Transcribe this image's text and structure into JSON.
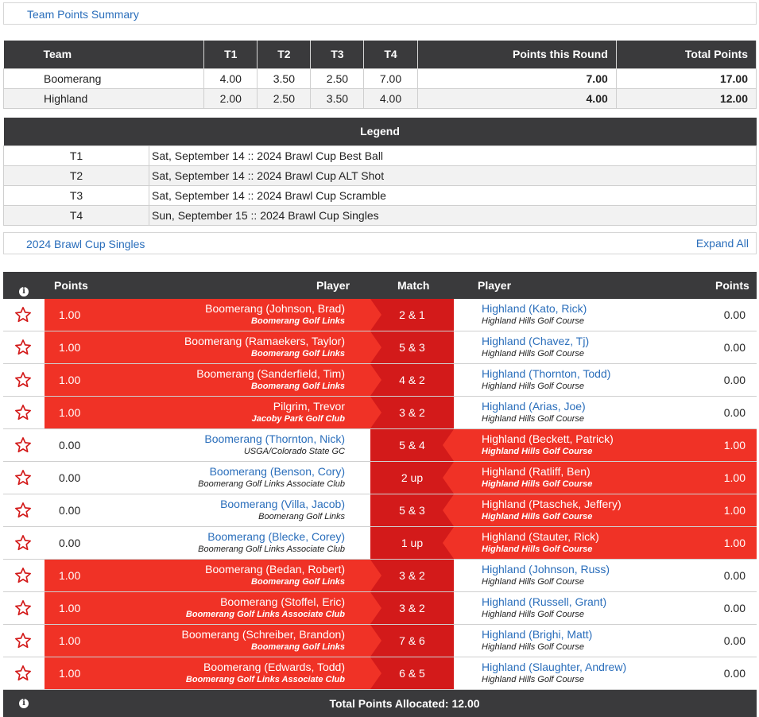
{
  "summary": {
    "link": "Team Points Summary"
  },
  "team_table": {
    "headers": [
      "Team",
      "T1",
      "T2",
      "T3",
      "T4",
      "Points this Round",
      "Total Points"
    ],
    "rows": [
      {
        "team": "Boomerang",
        "t1": "4.00",
        "t2": "3.50",
        "t3": "2.50",
        "t4": "7.00",
        "round": "7.00",
        "total": "17.00"
      },
      {
        "team": "Highland",
        "t1": "2.00",
        "t2": "2.50",
        "t3": "3.50",
        "t4": "4.00",
        "round": "4.00",
        "total": "12.00"
      }
    ]
  },
  "legend": {
    "title": "Legend",
    "rows": [
      {
        "key": "T1",
        "value": "Sat, September 14 :: 2024 Brawl Cup Best Ball"
      },
      {
        "key": "T2",
        "value": "Sat, September 14 :: 2024 Brawl Cup ALT Shot"
      },
      {
        "key": "T3",
        "value": "Sat, September 14 :: 2024 Brawl Cup Scramble"
      },
      {
        "key": "T4",
        "value": "Sun, September 15 :: 2024 Brawl Cup Singles"
      }
    ]
  },
  "round": {
    "title": "2024 Brawl Cup Singles",
    "expand": "Expand All"
  },
  "match_header": {
    "info_icon": "info-icon",
    "points_left": "Points",
    "player_left": "Player",
    "match": "Match",
    "player_right": "Player",
    "points_right": "Points"
  },
  "matches": [
    {
      "lpts": "1.00",
      "lname": "Boomerang (Johnson, Brad)",
      "lclub": "Boomerang Golf Links",
      "score": "2 & 1",
      "rname": "Highland (Kato, Rick)",
      "rclub": "Highland Hills Golf Course",
      "rpts": "0.00",
      "winner": "left"
    },
    {
      "lpts": "1.00",
      "lname": "Boomerang (Ramaekers, Taylor)",
      "lclub": "Boomerang Golf Links",
      "score": "5 & 3",
      "rname": "Highland (Chavez, Tj)",
      "rclub": "Highland Hills Golf Course",
      "rpts": "0.00",
      "winner": "left"
    },
    {
      "lpts": "1.00",
      "lname": "Boomerang (Sanderfield, Tim)",
      "lclub": "Boomerang Golf Links",
      "score": "4 & 2",
      "rname": "Highland (Thornton, Todd)",
      "rclub": "Highland Hills Golf Course",
      "rpts": "0.00",
      "winner": "left"
    },
    {
      "lpts": "1.00",
      "lname": "Pilgrim, Trevor",
      "lclub": "Jacoby Park Golf Club",
      "score": "3 & 2",
      "rname": "Highland (Arias, Joe)",
      "rclub": "Highland Hills Golf Course",
      "rpts": "0.00",
      "winner": "left"
    },
    {
      "lpts": "0.00",
      "lname": "Boomerang (Thornton, Nick)",
      "lclub": "USGA/Colorado State GC",
      "score": "5 & 4",
      "rname": "Highland (Beckett, Patrick)",
      "rclub": "Highland Hills Golf Course",
      "rpts": "1.00",
      "winner": "right"
    },
    {
      "lpts": "0.00",
      "lname": "Boomerang (Benson, Cory)",
      "lclub": "Boomerang Golf Links Associate Club",
      "score": "2 up",
      "rname": "Highland (Ratliff, Ben)",
      "rclub": "Highland Hills Golf Course",
      "rpts": "1.00",
      "winner": "right"
    },
    {
      "lpts": "0.00",
      "lname": "Boomerang (Villa, Jacob)",
      "lclub": "Boomerang Golf Links",
      "score": "5 & 3",
      "rname": "Highland (Ptaschek, Jeffery)",
      "rclub": "Highland Hills Golf Course",
      "rpts": "1.00",
      "winner": "right"
    },
    {
      "lpts": "0.00",
      "lname": "Boomerang (Blecke, Corey)",
      "lclub": "Boomerang Golf Links Associate Club",
      "score": "1 up",
      "rname": "Highland (Stauter, Rick)",
      "rclub": "Highland Hills Golf Course",
      "rpts": "1.00",
      "winner": "right"
    },
    {
      "lpts": "1.00",
      "lname": "Boomerang (Bedan, Robert)",
      "lclub": "Boomerang Golf Links",
      "score": "3 & 2",
      "rname": "Highland (Johnson, Russ)",
      "rclub": "Highland Hills Golf Course",
      "rpts": "0.00",
      "winner": "left"
    },
    {
      "lpts": "1.00",
      "lname": "Boomerang (Stoffel, Eric)",
      "lclub": "Boomerang Golf Links Associate Club",
      "score": "3 & 2",
      "rname": "Highland (Russell, Grant)",
      "rclub": "Highland Hills Golf Course",
      "rpts": "0.00",
      "winner": "left"
    },
    {
      "lpts": "1.00",
      "lname": "Boomerang (Schreiber, Brandon)",
      "lclub": "Boomerang Golf Links",
      "score": "7 & 6",
      "rname": "Highland (Brighi, Matt)",
      "rclub": "Highland Hills Golf Course",
      "rpts": "0.00",
      "winner": "left"
    },
    {
      "lpts": "1.00",
      "lname": "Boomerang (Edwards, Todd)",
      "lclub": "Boomerang Golf Links Associate Club",
      "score": "6 & 5",
      "rname": "Highland (Slaughter, Andrew)",
      "rclub": "Highland Hills Golf Course",
      "rpts": "0.00",
      "winner": "left"
    }
  ],
  "footer": {
    "info_icon": "info-icon",
    "total": "Total Points Allocated: 12.00"
  },
  "colors": {
    "header_bg": "#3a3a3c",
    "win_red": "#f03226",
    "match_red": "#d31a1a",
    "link_blue": "#2a6ebb"
  }
}
